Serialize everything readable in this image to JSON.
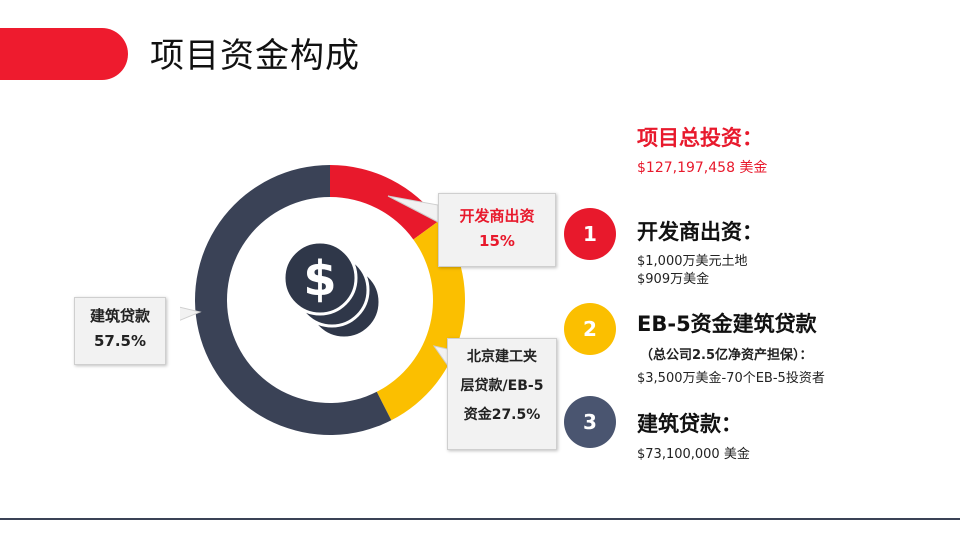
{
  "page": {
    "title": "项目资金构成"
  },
  "colors": {
    "accent_red": "#e8192c",
    "accent_yellow": "#fbbf00",
    "accent_navy": "#3a4256",
    "badge_slate": "#4a5570"
  },
  "chart_data": {
    "type": "pie",
    "donut": true,
    "center_icon": "dollar-coins-icon",
    "slices": [
      {
        "label": "开发商出资",
        "value": 15,
        "value_label": "15%",
        "color": "#e8192c"
      },
      {
        "label": "北京建工夹层贷款/EB-5资金",
        "value": 27.5,
        "value_label": "27.5%",
        "color": "#fbbf00"
      },
      {
        "label": "建筑贷款",
        "value": 57.5,
        "value_label": "57.5%",
        "color": "#3a4256"
      }
    ]
  },
  "callouts": {
    "developer": {
      "line1": "开发商出资",
      "line2": "15%"
    },
    "mezzanine": {
      "line1": "北京建工夹",
      "line2": "层贷款/EB-5",
      "line3": "资金27.5%"
    },
    "construction": {
      "line1": "建筑贷款",
      "line2": "57.5%"
    }
  },
  "summary": {
    "total_label": "项目总投资：",
    "total_value": "$127,197,458 美金",
    "items": [
      {
        "number": "1",
        "title": "开发商出资：",
        "lines": [
          "$1,000万美元土地",
          "$909万美金"
        ]
      },
      {
        "number": "2",
        "title": "EB-5资金建筑贷款",
        "note": "（总公司2.5亿净资产担保）：",
        "lines": [
          "$3,500万美金-70个EB-5投资者"
        ]
      },
      {
        "number": "3",
        "title": "建筑贷款：",
        "lines": [
          "$73,100,000 美金"
        ]
      }
    ]
  }
}
